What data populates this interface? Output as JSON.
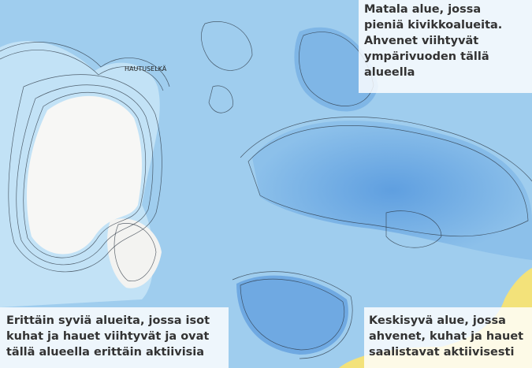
{
  "map": {
    "place_label": "HAUTUSELKÄ",
    "callouts": [
      {
        "lines": [
          "Matala alue, jossa",
          "pieniä kivikkoalueita.",
          "Ahvenet viihtyvät",
          "ympärivuoden tällä",
          "alueella"
        ]
      },
      {
        "lines": [
          "Erittäin syviä alueita, jossa isot",
          "kuhat ja hauet viihtyvät ja ovat",
          "tällä alueella erittäin aktiivisia"
        ]
      },
      {
        "lines": [
          "Keskisyvä alue, jossa",
          "ahvenet, kuhat ja hauet",
          "saalistavat aktiivisesti"
        ]
      }
    ]
  }
}
